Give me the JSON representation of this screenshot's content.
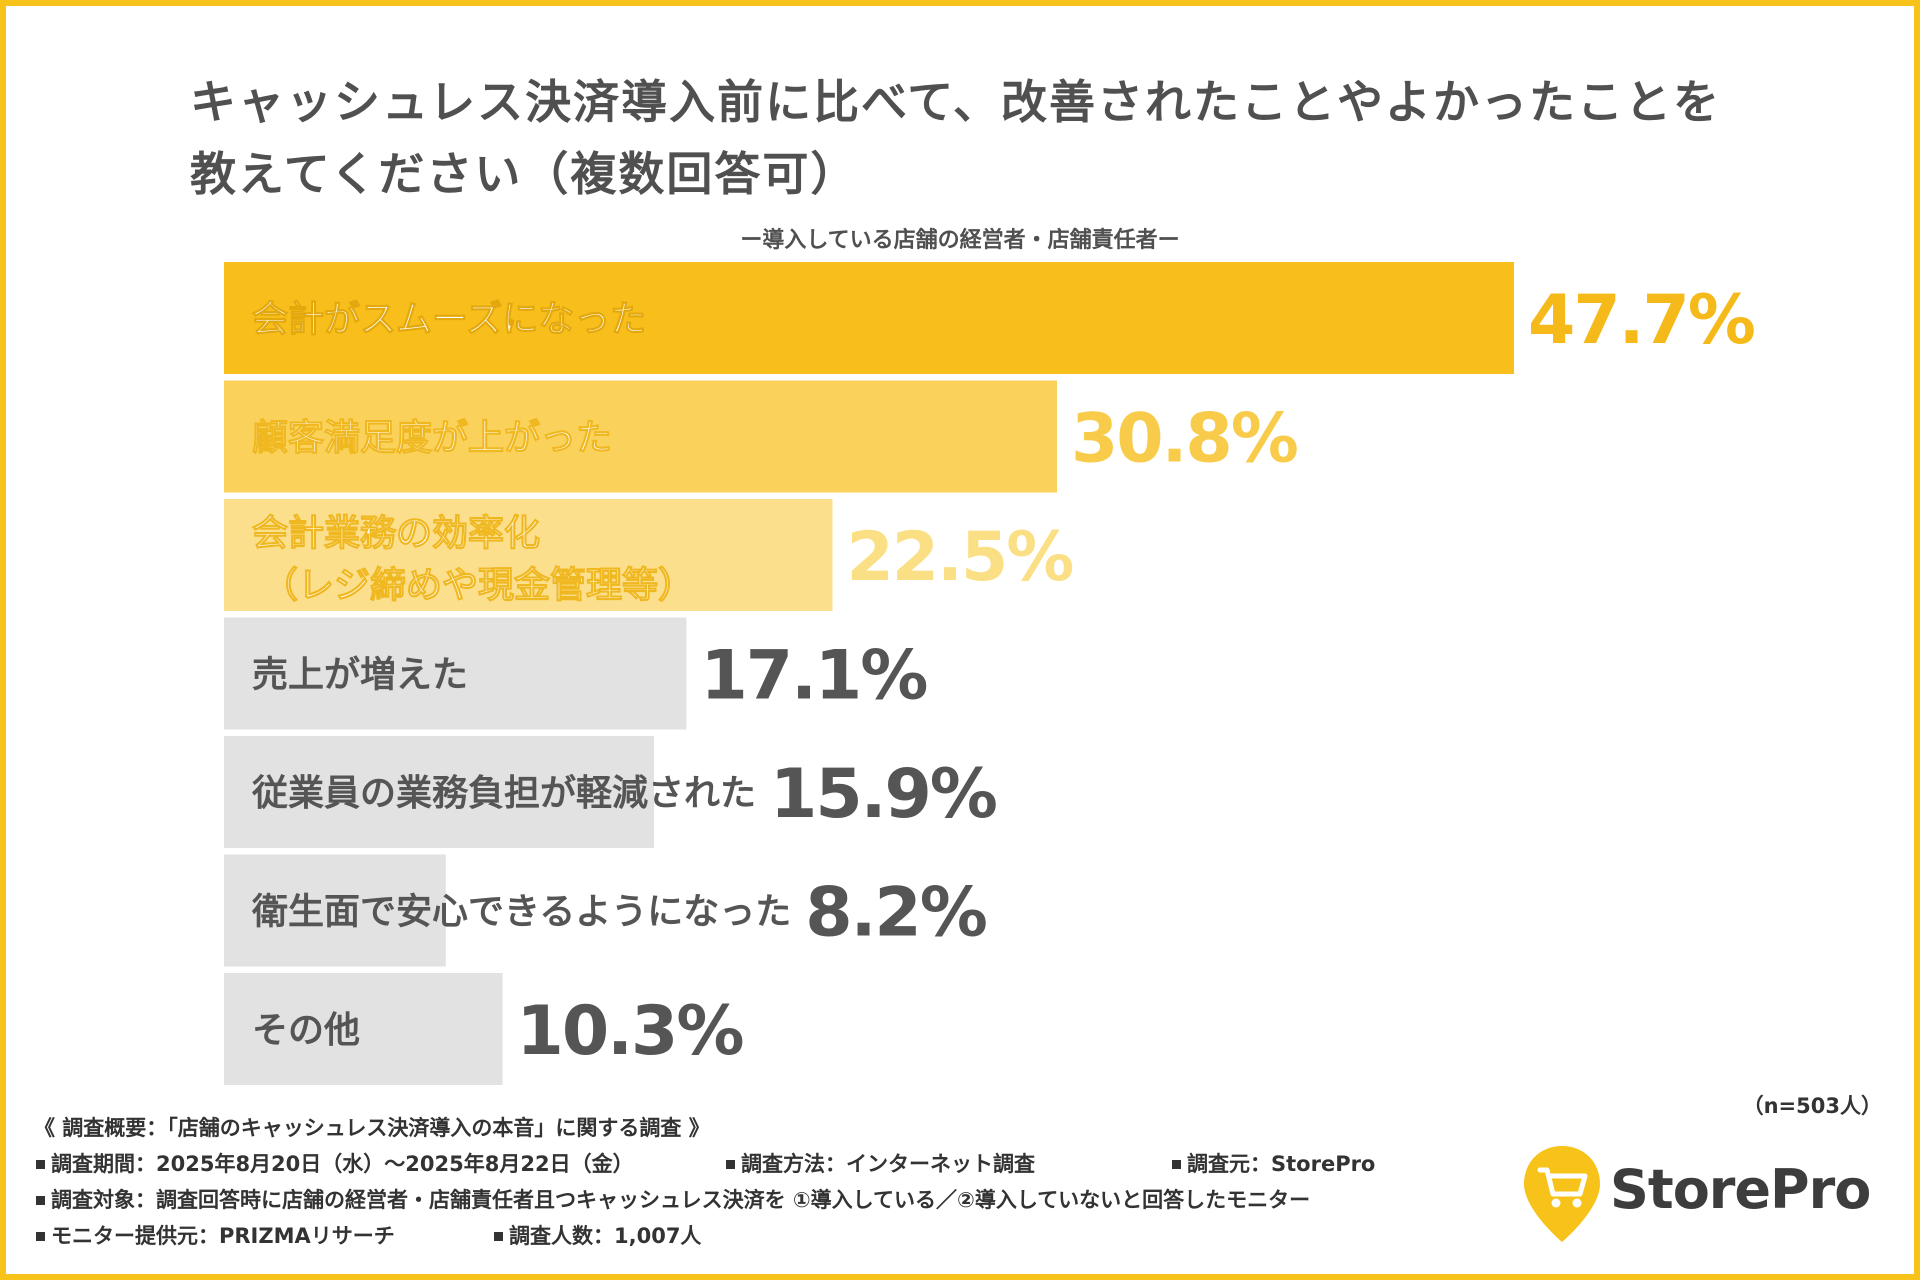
{
  "title_lines": [
    "キャッシュレス決済導入前に比べて、改善されたことやよかったことを",
    "教えてください（複数回答可）"
  ],
  "subtitle": "ー導入している店舗の経営者・店舗責任者ー",
  "colors": {
    "frame": "#F7C31A",
    "bar_1": "#F7BE1C",
    "bar_2": "#FAD15A",
    "bar_3": "#FCDF8C",
    "bar_other": "#E2E2E2",
    "value_1": "#F5BA1A",
    "value_2": "#F8CC4A",
    "value_3": "#FBDF84",
    "value_other": "#555555",
    "label_on_color": "#FFFFFF",
    "label_on_gray": "#555555"
  },
  "chart_data": {
    "type": "bar",
    "orientation": "horizontal",
    "categories": [
      [
        "会計がスムーズになった"
      ],
      [
        "顧客満足度が上がった"
      ],
      [
        "会計業務の効率化",
        "（レジ締めや現金管理等）"
      ],
      [
        "売上が増えた"
      ],
      [
        "従業員の業務負担が軽減された"
      ],
      [
        "衛生面で安心できるようになった"
      ],
      [
        "その他"
      ]
    ],
    "values": [
      47.7,
      30.8,
      22.5,
      17.1,
      15.9,
      8.2,
      10.3
    ],
    "value_labels": [
      "47.7%",
      "30.8%",
      "22.5%",
      "17.1%",
      "15.9%",
      "8.2%",
      "10.3%"
    ],
    "unit": "%",
    "grid": false,
    "legend": "none"
  },
  "sample_size": "（n=503人）",
  "footer": {
    "summary": "《 調査概要：「店舗のキャッシュレス決済導入の本音」に関する調査 》",
    "period": "調査期間：2025年8月20日（水）～2025年8月22日（金）",
    "method": "調査方法：インターネット調査",
    "source": "調査元：StorePro",
    "target": "調査対象：調査回答時に店舗の経営者・店舗責任者且つキャッシュレス決済を ①導入している／②導入していないと回答したモニター",
    "provider": "モニター提供元：PRIZMAリサーチ",
    "count": "調査人数：1,007人"
  },
  "logo": {
    "text": "StorePro",
    "icon": "cart-pin-icon"
  }
}
